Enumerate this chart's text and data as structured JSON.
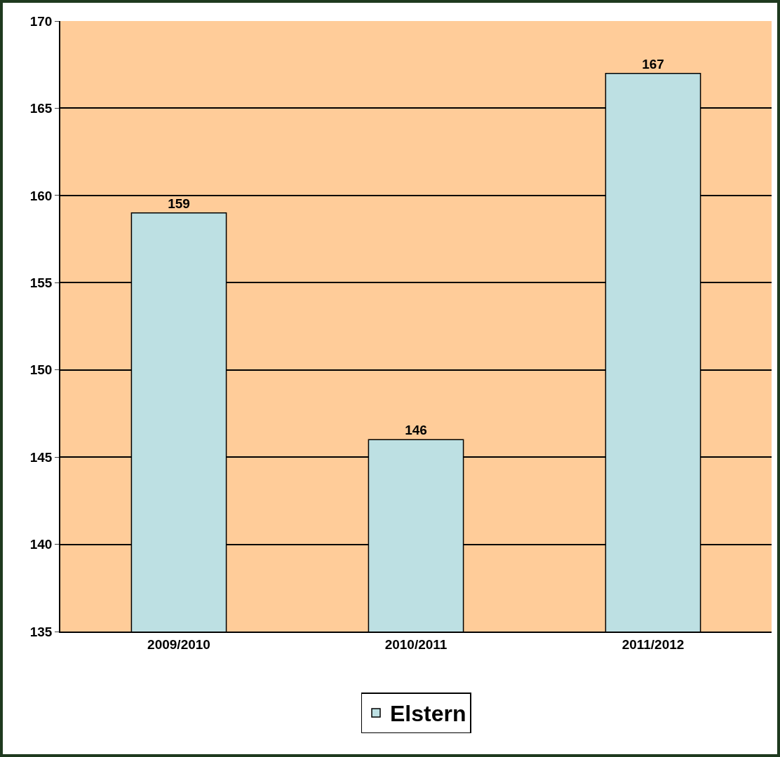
{
  "chart_data": {
    "type": "bar",
    "categories": [
      "2009/2010",
      "2010/2011",
      "2011/2012"
    ],
    "series": [
      {
        "name": "Elstern",
        "color": "#bde0e3",
        "values": [
          159,
          146,
          167
        ]
      }
    ],
    "ylim": [
      135,
      170
    ],
    "yticks": [
      135,
      140,
      145,
      150,
      155,
      160,
      165,
      170
    ],
    "grid": "y",
    "legend": "bottom",
    "data_labels": true
  }
}
